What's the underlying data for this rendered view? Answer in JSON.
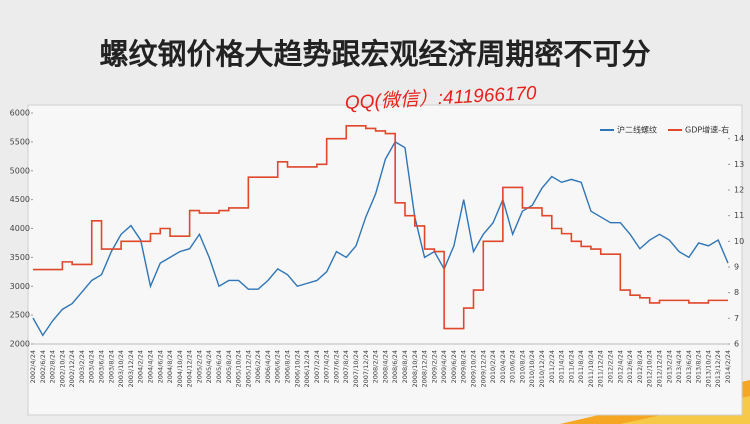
{
  "chart_data": {
    "type": "line",
    "title": "螺纹钢价格大趋势跟宏观经济周期密不可分",
    "annotation": "QQ(微信）:411966170",
    "categories": [
      "2002/4/24",
      "2002/6/24",
      "2002/8/24",
      "2002/10/24",
      "2002/12/24",
      "2003/2/24",
      "2003/4/24",
      "2003/6/24",
      "2003/8/24",
      "2003/10/24",
      "2003/12/24",
      "2004/2/24",
      "2004/4/24",
      "2004/6/24",
      "2004/8/24",
      "2004/10/24",
      "2004/12/24",
      "2005/2/24",
      "2005/4/24",
      "2005/6/24",
      "2005/8/24",
      "2005/10/24",
      "2005/12/24",
      "2006/2/24",
      "2006/4/24",
      "2006/6/24",
      "2006/8/24",
      "2006/10/24",
      "2006/12/24",
      "2007/2/24",
      "2007/4/24",
      "2007/6/24",
      "2007/8/24",
      "2007/10/24",
      "2007/12/24",
      "2008/2/24",
      "2008/4/24",
      "2008/6/24",
      "2008/8/24",
      "2008/10/24",
      "2008/12/24",
      "2009/2/24",
      "2009/4/24",
      "2009/6/24",
      "2009/8/24",
      "2009/10/24",
      "2009/12/24",
      "2010/2/24",
      "2010/4/24",
      "2010/6/24",
      "2010/8/24",
      "2010/10/24",
      "2010/12/24",
      "2011/2/24",
      "2011/4/24",
      "2011/6/24",
      "2011/8/24",
      "2011/10/24",
      "2011/12/24",
      "2012/2/24",
      "2012/4/24",
      "2012/6/24",
      "2012/8/24",
      "2012/10/24",
      "2012/12/24",
      "2013/2/24",
      "2013/4/24",
      "2013/6/24",
      "2013/8/24",
      "2013/10/24",
      "2013/12/24",
      "2014/2/24"
    ],
    "series": [
      {
        "name": "沪二线螺纹",
        "color": "#2e75b6",
        "values": [
          2450,
          2150,
          2400,
          2600,
          2700,
          2900,
          3100,
          3200,
          3600,
          3900,
          4050,
          3800,
          3000,
          3400,
          3500,
          3600,
          3650,
          3900,
          3500,
          3000,
          3100,
          3100,
          2950,
          2950,
          3100,
          3300,
          3200,
          3000,
          3050,
          3100,
          3250,
          3600,
          3500,
          3700,
          4200,
          4600,
          5200,
          5500,
          5400,
          4200,
          3500,
          3600,
          3300,
          3700,
          4500,
          3600,
          3900,
          4100,
          4500,
          3900,
          4300,
          4400,
          4700,
          4900,
          4800,
          4850,
          4800,
          4300,
          4200,
          4100,
          4100,
          3900,
          3650,
          3800,
          3900,
          3800,
          3600,
          3500,
          3750,
          3700,
          3800,
          3400
        ]
      },
      {
        "name": "GDP增速-右",
        "color": "#e0472b",
        "axis": "y2",
        "values": [
          8.9,
          8.9,
          8.9,
          9.2,
          9.1,
          9.1,
          10.8,
          9.7,
          9.7,
          10.0,
          10.0,
          10.0,
          10.3,
          10.5,
          10.2,
          10.2,
          11.2,
          11.1,
          11.1,
          11.2,
          11.3,
          11.3,
          12.5,
          12.5,
          12.5,
          13.1,
          12.9,
          12.9,
          12.9,
          13.0,
          14.0,
          14.0,
          14.5,
          14.5,
          14.4,
          14.3,
          14.2,
          11.5,
          11.0,
          10.6,
          9.7,
          9.6,
          6.6,
          6.6,
          7.4,
          8.1,
          10.0,
          10.0,
          12.1,
          12.1,
          11.3,
          11.3,
          11.0,
          10.5,
          10.3,
          10.0,
          9.8,
          9.7,
          9.5,
          9.5,
          8.1,
          7.9,
          7.8,
          7.6,
          7.7,
          7.7,
          7.7,
          7.6,
          7.6,
          7.7,
          7.7,
          7.7
        ]
      }
    ],
    "ylim": [
      2000,
      6000
    ],
    "yticks": [
      2000,
      2500,
      3000,
      3500,
      4000,
      4500,
      5000,
      5500,
      6000
    ],
    "y2lim": [
      6,
      15
    ],
    "y2ticks": [
      6,
      7,
      8,
      9,
      10,
      11,
      12,
      13,
      14
    ],
    "legend": "top-right",
    "grid": false
  }
}
